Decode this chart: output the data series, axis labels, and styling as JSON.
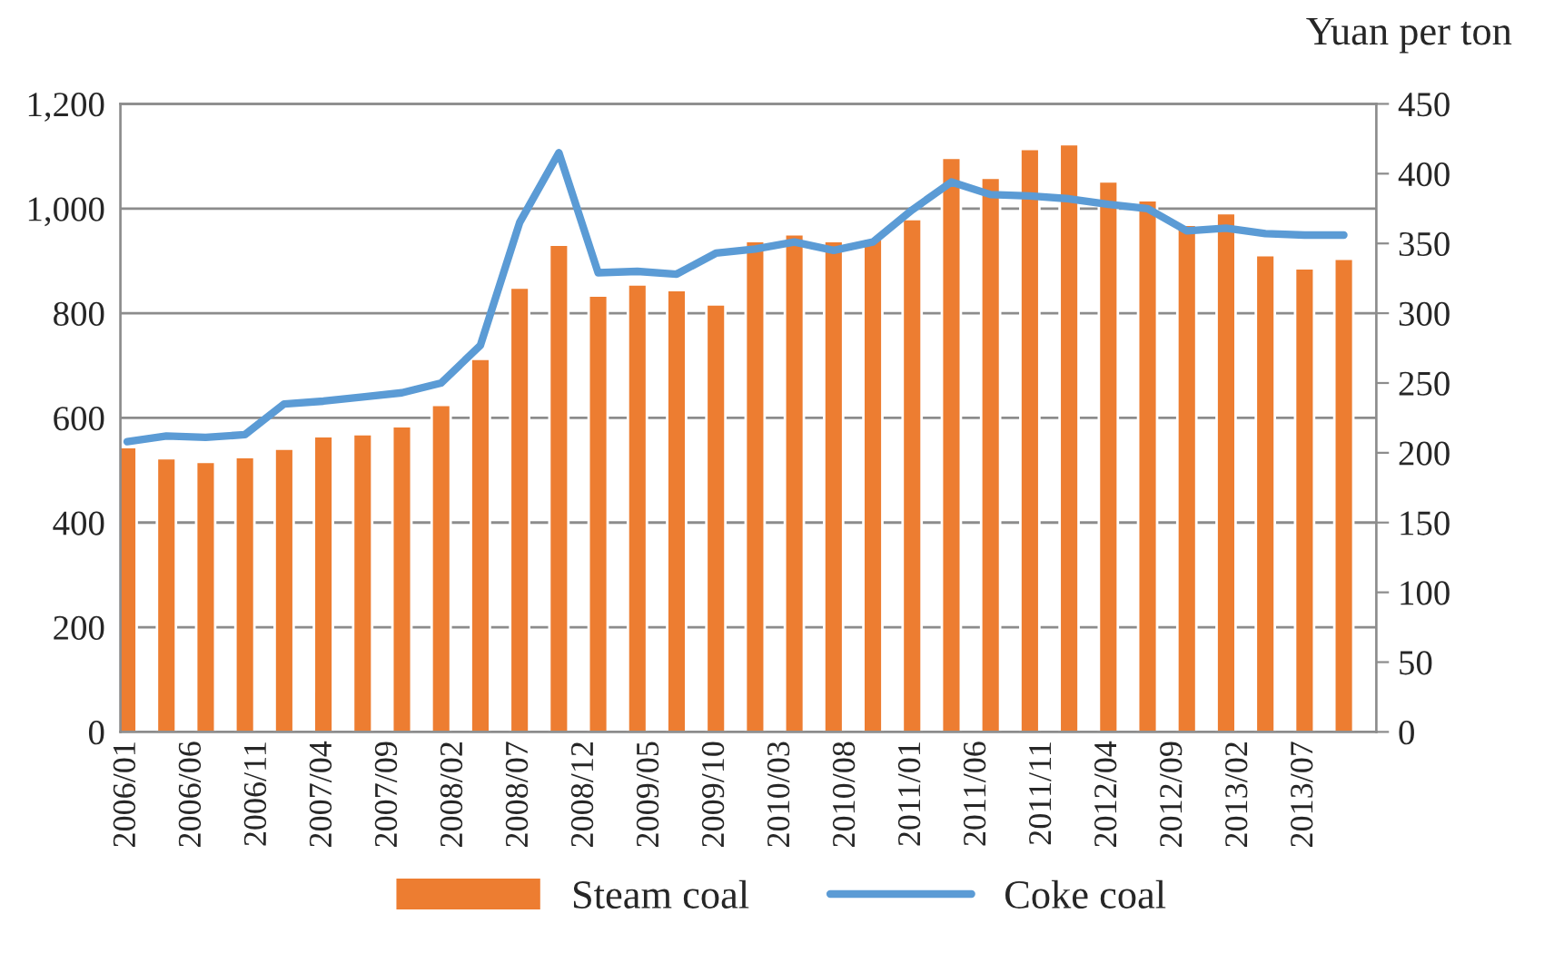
{
  "chart_data": {
    "type": "bar",
    "y2label": "Yuan per ton",
    "x": [
      "2006-01",
      "2006-04",
      "2006-07",
      "2006-10",
      "2007-01",
      "2007-04",
      "2007-07",
      "2007-10",
      "2008-01",
      "2008-04",
      "2008-07",
      "2008-10",
      "2009-01",
      "2009-04",
      "2009-07",
      "2009-10",
      "2010-01",
      "2010-04",
      "2010-07",
      "2010-10",
      "2011-01",
      "2011-04",
      "2011-07",
      "2011-10",
      "2012-01",
      "2012-04",
      "2012-07",
      "2012-10",
      "2013-01",
      "2013-04",
      "2013-07",
      "2013-10"
    ],
    "series": [
      {
        "name": "Steam coal",
        "color": "#ed7d31",
        "values": [
          544,
          523,
          516,
          525,
          541,
          565,
          569,
          584,
          625,
          713,
          849,
          931,
          834,
          855,
          844,
          817,
          938,
          951,
          938,
          942,
          980,
          1097,
          1059,
          1114,
          1123,
          1052,
          1016,
          969,
          991,
          911,
          886,
          904
        ]
      },
      {
        "name": "Coke coal",
        "type": "line",
        "axis": "y2",
        "color": "#5b9bd5",
        "values": [
          208,
          212,
          211,
          213,
          235,
          237,
          240,
          243,
          250,
          277,
          365,
          415,
          329,
          330,
          328,
          343,
          346,
          351,
          345,
          351,
          374,
          394,
          385,
          384,
          382,
          378,
          375,
          359,
          361,
          357,
          356,
          356
        ]
      }
    ],
    "xlim": [
      "2005-12-16",
      "2013-12-16"
    ],
    "xticks": [
      {
        "value": "2006-01",
        "label": "2006/01"
      },
      {
        "value": "2006-06",
        "label": "2006/06"
      },
      {
        "value": "2006-11",
        "label": "2006/11"
      },
      {
        "value": "2007-04",
        "label": "2007/04"
      },
      {
        "value": "2007-09",
        "label": "2007/09"
      },
      {
        "value": "2008-02",
        "label": "2008/02"
      },
      {
        "value": "2008-07",
        "label": "2008/07"
      },
      {
        "value": "2008-12",
        "label": "2008/12"
      },
      {
        "value": "2009-05",
        "label": "2009/05"
      },
      {
        "value": "2009-10",
        "label": "2009/10"
      },
      {
        "value": "2010-03",
        "label": "2010/03"
      },
      {
        "value": "2010-08",
        "label": "2010/08"
      },
      {
        "value": "2011-01",
        "label": "2011/01"
      },
      {
        "value": "2011-06",
        "label": "2011/06"
      },
      {
        "value": "2011-11",
        "label": "2011/11"
      },
      {
        "value": "2012-04",
        "label": "2012/04"
      },
      {
        "value": "2012-09",
        "label": "2012/09"
      },
      {
        "value": "2013-02",
        "label": "2013/02"
      },
      {
        "value": "2013-07",
        "label": "2013/07"
      }
    ],
    "ylim": [
      0,
      1200
    ],
    "yticks": [
      0,
      200,
      400,
      600,
      800,
      {
        "value": 1000,
        "label": "1,000"
      },
      {
        "value": 1200,
        "label": "1,200"
      }
    ],
    "y2lim": [
      0,
      450
    ],
    "y2ticks": [
      0,
      50,
      100,
      150,
      200,
      250,
      300,
      350,
      400,
      450
    ],
    "grid": "y",
    "legend": "bottom",
    "marker": "none",
    "line_style": "solid"
  }
}
